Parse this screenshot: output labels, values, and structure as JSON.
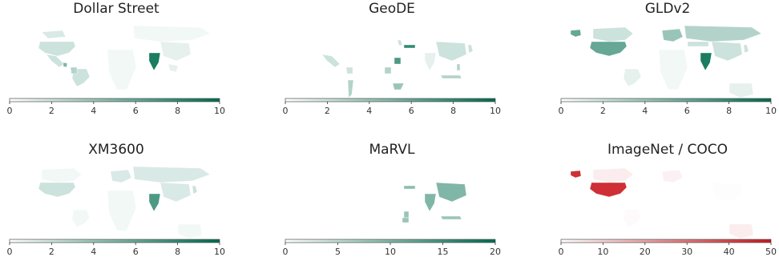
{
  "chart_data": [
    {
      "type": "choropleth",
      "title": "Dollar Street",
      "colorbar": {
        "min": 0,
        "max": 10,
        "ticks": [
          "0",
          "2",
          "4",
          "6",
          "8",
          "10"
        ],
        "colors": [
          "#ffffff",
          "#006d4f"
        ]
      },
      "regions": [
        {
          "id": "india",
          "value": 9
        },
        {
          "id": "usa",
          "value": 2
        },
        {
          "id": "mexico",
          "value": 2
        },
        {
          "id": "brazil",
          "value": 2
        },
        {
          "id": "colombia",
          "value": 3
        },
        {
          "id": "guatemala",
          "value": 5
        },
        {
          "id": "china",
          "value": 1
        },
        {
          "id": "russia",
          "value": 0.5
        },
        {
          "id": "canada-west",
          "value": 1.5
        },
        {
          "id": "africa",
          "value": 0.5
        },
        {
          "id": "sea",
          "value": 1
        }
      ]
    },
    {
      "type": "choropleth",
      "title": "GeoDE",
      "colorbar": {
        "min": 0,
        "max": 10,
        "ticks": [
          "0",
          "2",
          "4",
          "6",
          "8",
          "10"
        ],
        "colors": [
          "#ffffff",
          "#006d4f"
        ]
      },
      "regions": [
        {
          "id": "china",
          "value": 2
        },
        {
          "id": "india",
          "value": 1
        },
        {
          "id": "argentina",
          "value": 3
        },
        {
          "id": "colombia",
          "value": 2
        },
        {
          "id": "mexico",
          "value": 2
        },
        {
          "id": "egypt",
          "value": 7
        },
        {
          "id": "turkey",
          "value": 8
        },
        {
          "id": "south-africa",
          "value": 4
        },
        {
          "id": "nigeria",
          "value": 3
        },
        {
          "id": "italy",
          "value": 2
        },
        {
          "id": "indonesia",
          "value": 3
        },
        {
          "id": "philippines",
          "value": 3
        },
        {
          "id": "japan",
          "value": 2
        }
      ]
    },
    {
      "type": "choropleth",
      "title": "GLDv2",
      "colorbar": {
        "min": 0,
        "max": 10,
        "ticks": [
          "0",
          "2",
          "4",
          "6",
          "8",
          "10"
        ],
        "colors": [
          "#ffffff",
          "#006d4f"
        ]
      },
      "regions": [
        {
          "id": "usa",
          "value": 6
        },
        {
          "id": "india",
          "value": 9
        },
        {
          "id": "canada",
          "value": 2
        },
        {
          "id": "alaska",
          "value": 6
        },
        {
          "id": "russia",
          "value": 3
        },
        {
          "id": "china",
          "value": 2
        },
        {
          "id": "europe",
          "value": 4
        },
        {
          "id": "brazil",
          "value": 1
        },
        {
          "id": "australia",
          "value": 1
        },
        {
          "id": "africa",
          "value": 0.5
        },
        {
          "id": "kazakhstan",
          "value": 2
        },
        {
          "id": "japan",
          "value": 2
        }
      ]
    },
    {
      "type": "choropleth",
      "title": "XM3600",
      "colorbar": {
        "min": 0,
        "max": 10,
        "ticks": [
          "0",
          "2",
          "4",
          "6",
          "8",
          "10"
        ],
        "colors": [
          "#ffffff",
          "#006d4f"
        ]
      },
      "regions": [
        {
          "id": "india",
          "value": 7
        },
        {
          "id": "usa",
          "value": 2
        },
        {
          "id": "russia",
          "value": 1.5
        },
        {
          "id": "china",
          "value": 1.5
        },
        {
          "id": "europe",
          "value": 1.5
        },
        {
          "id": "canada",
          "value": 0.5
        },
        {
          "id": "brazil",
          "value": 0.5
        },
        {
          "id": "australia",
          "value": 0.5
        },
        {
          "id": "africa",
          "value": 0.5
        },
        {
          "id": "japan",
          "value": 2
        }
      ]
    },
    {
      "type": "choropleth",
      "title": "MaRVL",
      "colorbar": {
        "min": 0,
        "max": 20,
        "ticks": [
          "0",
          "5",
          "10",
          "15",
          "20"
        ],
        "colors": [
          "#ffffff",
          "#006d4f"
        ]
      },
      "regions": [
        {
          "id": "china",
          "value": 10
        },
        {
          "id": "india",
          "value": 10
        },
        {
          "id": "indonesia",
          "value": 8
        },
        {
          "id": "turkey",
          "value": 9
        },
        {
          "id": "kenya",
          "value": 8
        },
        {
          "id": "tanzania",
          "value": 8
        }
      ]
    },
    {
      "type": "choropleth",
      "title": "ImageNet / COCO",
      "colorbar": {
        "min": 0,
        "max": 50,
        "ticks": [
          "0",
          "10",
          "20",
          "30",
          "40",
          "50"
        ],
        "colors": [
          "#ffffff",
          "#c8191f"
        ]
      },
      "regions": [
        {
          "id": "usa",
          "value": 45
        },
        {
          "id": "alaska",
          "value": 45
        },
        {
          "id": "canada",
          "value": 4
        },
        {
          "id": "europe",
          "value": 3
        },
        {
          "id": "australia",
          "value": 4
        },
        {
          "id": "brazil",
          "value": 1
        },
        {
          "id": "china",
          "value": 0.5
        }
      ]
    }
  ]
}
